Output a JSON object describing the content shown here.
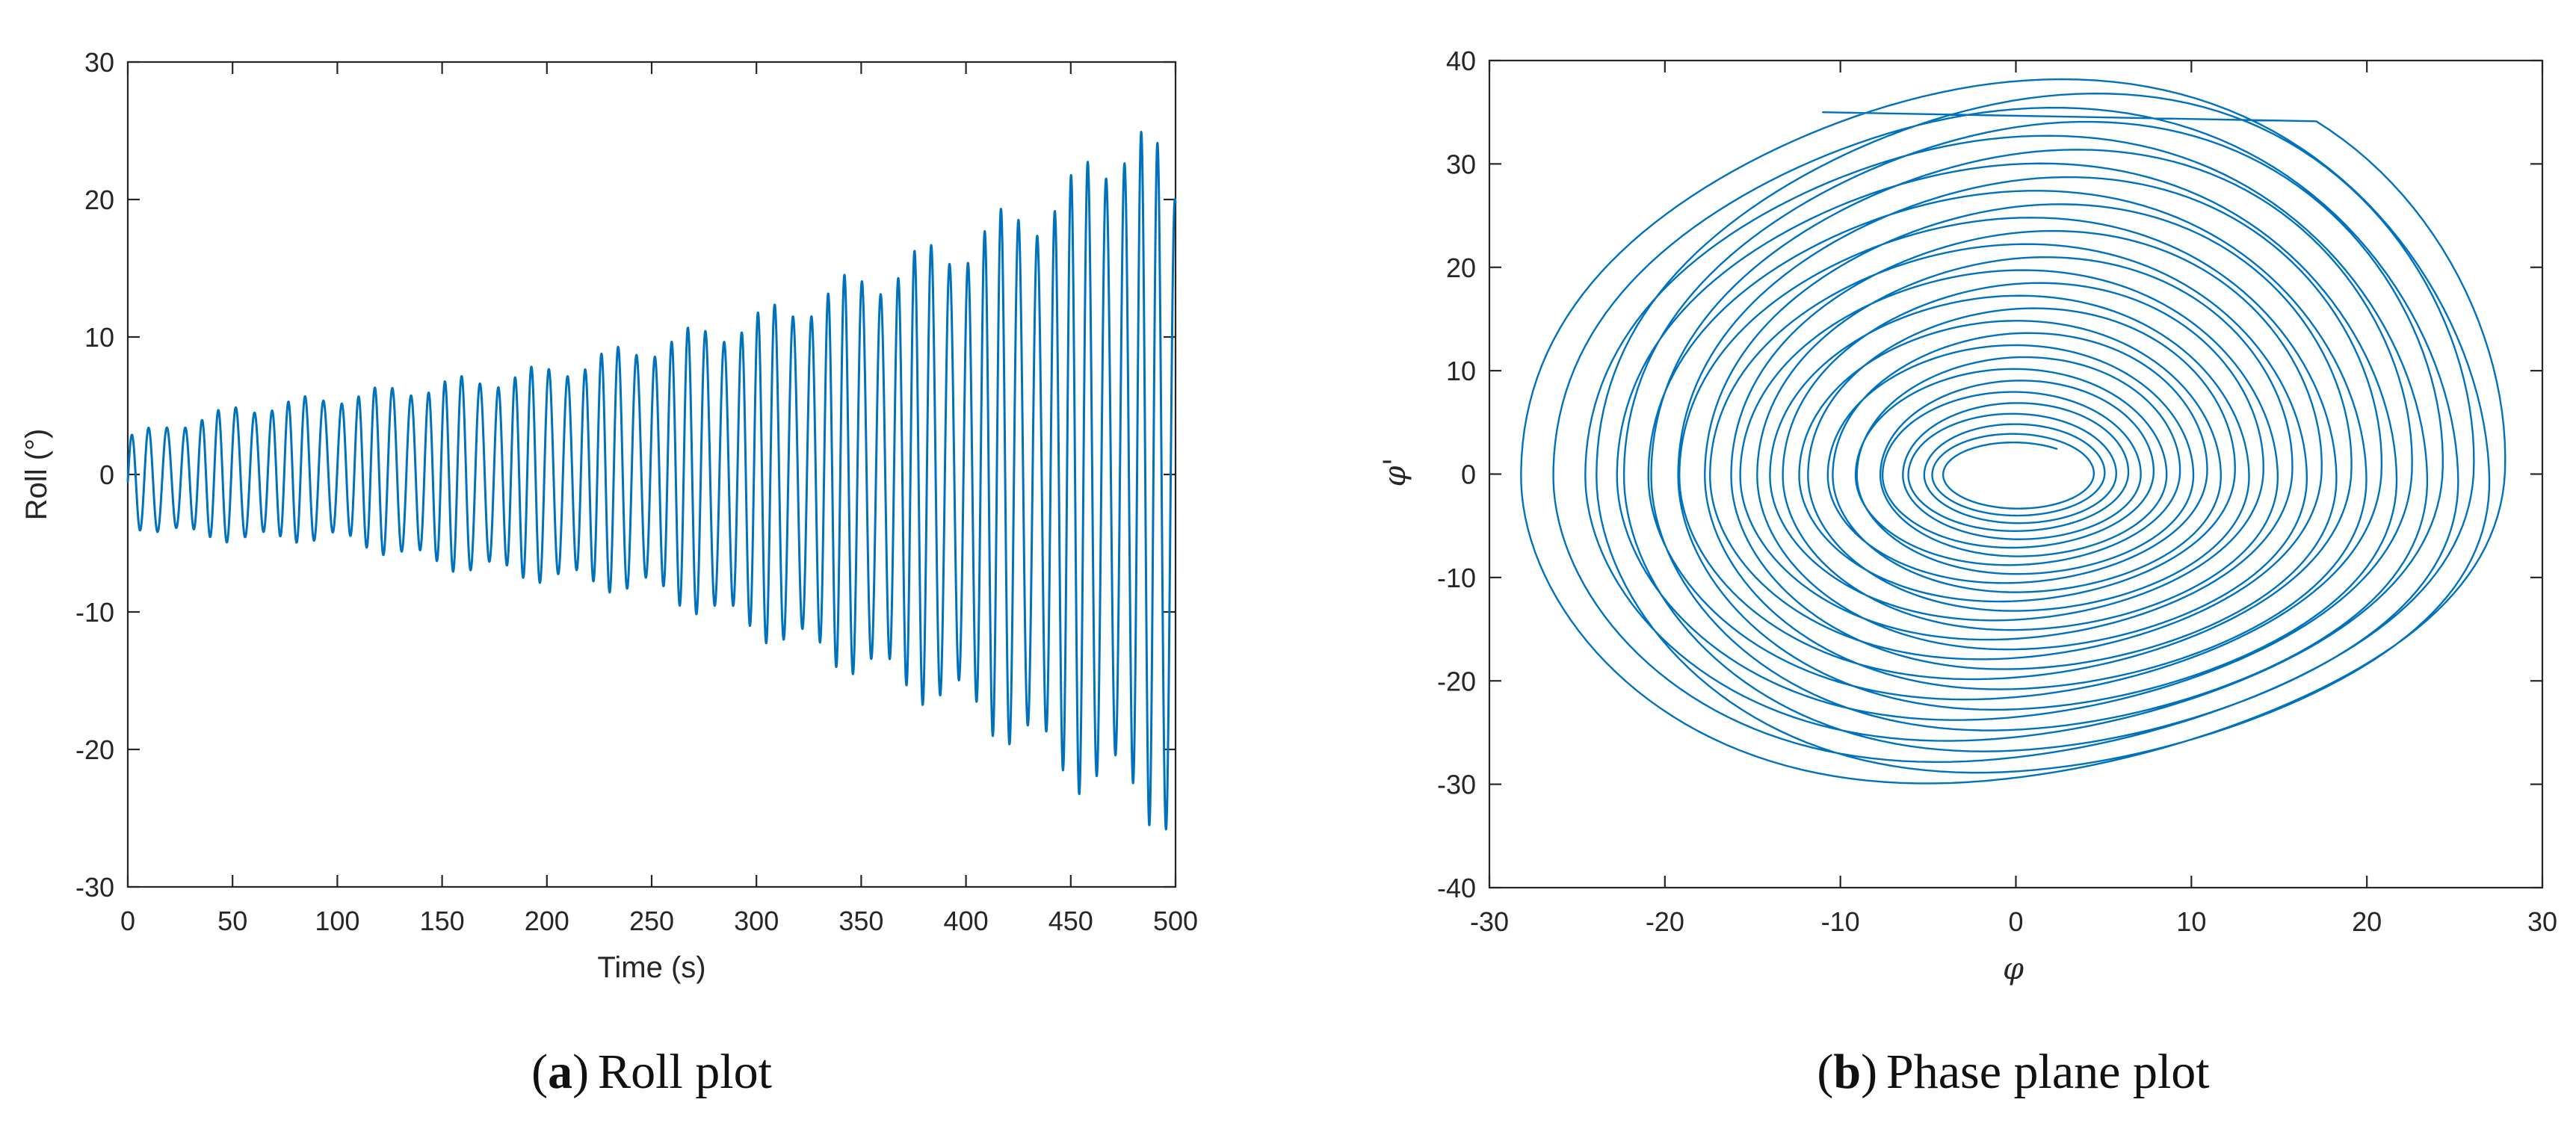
{
  "colors": {
    "series": "#0072BD",
    "axis": "#262626",
    "caption": "#111111"
  },
  "chart_data": [
    {
      "id": "a",
      "type": "line",
      "title": "",
      "xlabel": "Time (s)",
      "ylabel": "Roll (°)",
      "xlim": [
        0,
        500
      ],
      "ylim": [
        -30,
        30
      ],
      "xticks": [
        0,
        50,
        100,
        150,
        200,
        250,
        300,
        350,
        400,
        450,
        500
      ],
      "yticks": [
        -30,
        -20,
        -10,
        0,
        10,
        20,
        30
      ],
      "grid": false,
      "legend": "none",
      "caption_letter": "a",
      "caption_text": "Roll plot",
      "series": [
        {
          "color": "#0072BD",
          "description_of_shape": "oscillating roll signal whose amplitude grows over time",
          "period_s": 8.3,
          "envelope": {
            "time_s": [
              0,
              50,
              100,
              150,
              200,
              250,
              300,
              350,
              400,
              450,
              480,
              500
            ],
            "positive_peak_deg": [
              3,
              5,
              6,
              7,
              8,
              10,
              12,
              15,
              18,
              22,
              27,
              22
            ],
            "negative_peak_deg": [
              -4,
              -5,
              -5,
              -7,
              -8,
              -9,
              -12,
              -15,
              -18,
              -23,
              -25,
              -27
            ]
          }
        }
      ]
    },
    {
      "id": "b",
      "type": "line",
      "title": "",
      "xlabel": "φ",
      "ylabel": "φ'",
      "xlim": [
        -30,
        30
      ],
      "ylim": [
        -40,
        40
      ],
      "xticks": [
        -30,
        -20,
        -10,
        0,
        10,
        20,
        30
      ],
      "yticks": [
        -40,
        -30,
        -20,
        -10,
        0,
        10,
        20,
        30,
        40
      ],
      "grid": false,
      "legend": "none",
      "caption_letter": "b",
      "caption_text": "Phase plane plot",
      "series": [
        {
          "color": "#0072BD",
          "description_of_shape": "phase-plane trajectory spiralling outward from a small central loop",
          "start_point": [
            -11,
            35
          ],
          "inner_radius": [
            4,
            3
          ],
          "outer_extent": {
            "phi_min": -27,
            "phi_max": 28,
            "dphi_min": -30,
            "dphi_max": 39
          }
        }
      ]
    }
  ]
}
